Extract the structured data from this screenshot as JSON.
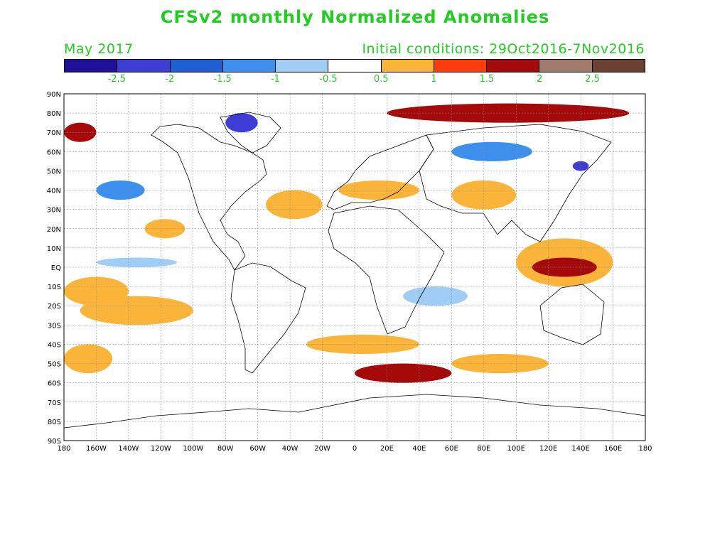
{
  "title": "CFSv2 monthly Normalized Anomalies",
  "subtitle_left": "May 2017",
  "subtitle_right": "Initial conditions: 29Oct2016-7Nov2016",
  "colorbar": {
    "colors": [
      "#1f0f99",
      "#3d3dd6",
      "#1f5fd6",
      "#3d8fee",
      "#9fcdf5",
      "#ffffff",
      "#fbb43a",
      "#fc3c0a",
      "#a40a0a",
      "#a07a6a",
      "#6a4030"
    ],
    "labels": [
      "-2.5",
      "-2",
      "-1.5",
      "-1",
      "-0.5",
      "0.5",
      "1",
      "1.5",
      "2",
      "2.5"
    ]
  },
  "map": {
    "lat_labels": [
      "90N",
      "80N",
      "70N",
      "60N",
      "50N",
      "40N",
      "30N",
      "20N",
      "10N",
      "EQ",
      "10S",
      "20S",
      "30S",
      "40S",
      "50S",
      "60S",
      "70S",
      "80S",
      "90S"
    ],
    "lon_labels": [
      "180",
      "160W",
      "140W",
      "120W",
      "100W",
      "80W",
      "60W",
      "40W",
      "20W",
      "0",
      "20E",
      "40E",
      "60E",
      "80E",
      "100E",
      "120E",
      "140E",
      "160E",
      "180"
    ],
    "anomaly_regions": [
      {
        "lon": [
          -180,
          -140
        ],
        "lat": [
          -20,
          -5
        ],
        "level": 1
      },
      {
        "lon": [
          -170,
          -100
        ],
        "lat": [
          -30,
          -15
        ],
        "level": 1
      },
      {
        "lon": [
          -180,
          -150
        ],
        "lat": [
          -55,
          -40
        ],
        "level": 1
      },
      {
        "lon": [
          -130,
          -105
        ],
        "lat": [
          15,
          25
        ],
        "level": 1
      },
      {
        "lon": [
          -55,
          -20
        ],
        "lat": [
          25,
          40
        ],
        "level": 1
      },
      {
        "lon": [
          -30,
          40
        ],
        "lat": [
          -45,
          -35
        ],
        "level": 1
      },
      {
        "lon": [
          0,
          60
        ],
        "lat": [
          -60,
          -50
        ],
        "level": 2
      },
      {
        "lon": [
          60,
          100
        ],
        "lat": [
          30,
          45
        ],
        "level": 1
      },
      {
        "lon": [
          100,
          160
        ],
        "lat": [
          -10,
          15
        ],
        "level": 1
      },
      {
        "lon": [
          110,
          150
        ],
        "lat": [
          -5,
          5
        ],
        "level": 2
      },
      {
        "lon": [
          60,
          120
        ],
        "lat": [
          -55,
          -45
        ],
        "level": 1
      },
      {
        "lon": [
          20,
          170
        ],
        "lat": [
          75,
          85
        ],
        "level": 2
      },
      {
        "lon": [
          -180,
          -160
        ],
        "lat": [
          65,
          75
        ],
        "level": 2
      },
      {
        "lon": [
          -10,
          40
        ],
        "lat": [
          35,
          45
        ],
        "level": 1
      },
      {
        "lon": [
          -80,
          -60
        ],
        "lat": [
          70,
          80
        ],
        "level": -2
      },
      {
        "lon": [
          135,
          145
        ],
        "lat": [
          50,
          55
        ],
        "level": -2
      },
      {
        "lon": [
          -160,
          -130
        ],
        "lat": [
          35,
          45
        ],
        "level": -1
      },
      {
        "lon": [
          60,
          110
        ],
        "lat": [
          55,
          65
        ],
        "level": -1
      },
      {
        "lon": [
          -160,
          -110
        ],
        "lat": [
          0,
          5
        ],
        "level": -0.5
      },
      {
        "lon": [
          30,
          70
        ],
        "lat": [
          -20,
          -10
        ],
        "level": -0.5
      }
    ]
  }
}
